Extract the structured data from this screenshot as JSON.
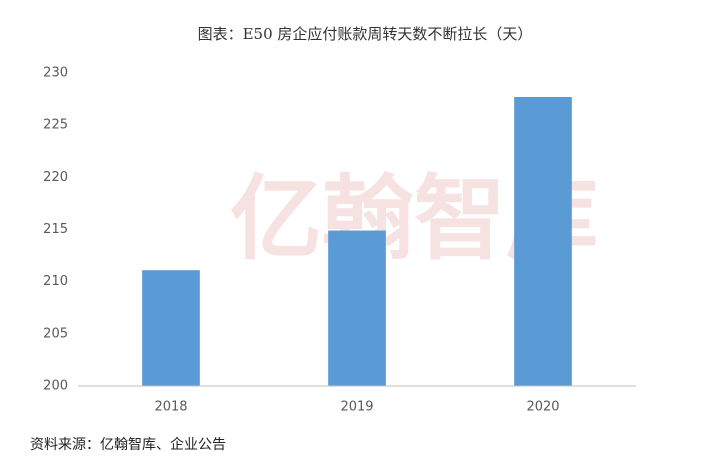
{
  "chart_data": {
    "type": "bar",
    "title": "图表：E50 房企应付账款周转天数不断拉长（天）",
    "categories": [
      "2018",
      "2019",
      "2020"
    ],
    "values": [
      211.1,
      214.9,
      227.7
    ],
    "color": "#5b9bd5",
    "ylim": [
      200,
      230
    ],
    "yticks": [
      200,
      205,
      210,
      215,
      220,
      225,
      230
    ],
    "grid": false,
    "watermark": "亿翰智库",
    "source": "资料来源：亿翰智库、企业公告"
  }
}
